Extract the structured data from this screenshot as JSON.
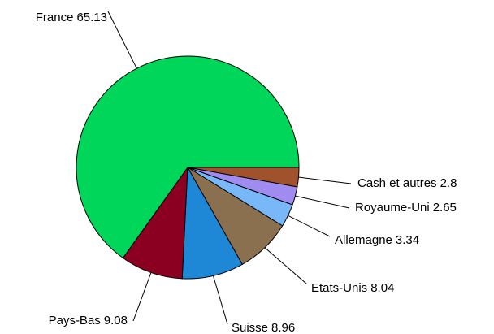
{
  "chart_data": {
    "type": "pie",
    "categories": [
      "Cash et autres",
      "Royaume-Uni",
      "Allemagne",
      "Etats-Unis",
      "Suisse",
      "Pays-Bas",
      "France"
    ],
    "values": [
      2.8,
      2.65,
      3.34,
      8.04,
      8.96,
      9.08,
      65.13
    ],
    "colors": [
      "#a0522d",
      "#a08cf0",
      "#78b8f8",
      "#8b7050",
      "#1e88d6",
      "#8b0020",
      "#00d65a"
    ]
  }
}
